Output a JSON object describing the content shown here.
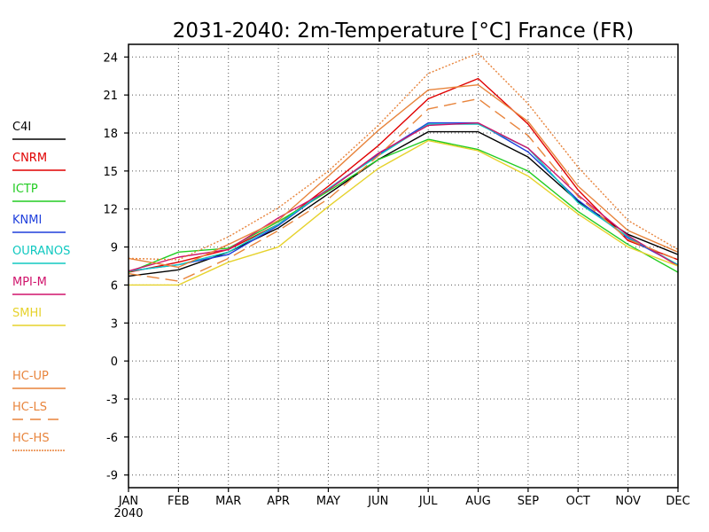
{
  "chart_data": {
    "type": "line",
    "title": "2031-2040: 2m-Temperature [°C] France (FR)",
    "xlabel": "",
    "ylabel": "",
    "categories": [
      "JAN",
      "FEB",
      "MAR",
      "APR",
      "MAY",
      "JUN",
      "JUL",
      "AUG",
      "SEP",
      "OCT",
      "NOV",
      "DEC"
    ],
    "x_sublabel": "2040",
    "ylim": [
      -10,
      25
    ],
    "yticks": [
      -9,
      -6,
      -3,
      0,
      3,
      6,
      9,
      12,
      15,
      18,
      21,
      24
    ],
    "grid": true,
    "legend_position": "left",
    "series": [
      {
        "name": "C4I",
        "color": "#000000",
        "dash": "solid",
        "values": [
          6.7,
          7.2,
          8.6,
          10.5,
          13.2,
          15.9,
          18.1,
          18.1,
          16.1,
          12.6,
          10.0,
          8.4
        ]
      },
      {
        "name": "CNRM",
        "color": "#e00000",
        "dash": "solid",
        "values": [
          7.0,
          7.8,
          8.8,
          10.8,
          13.8,
          17.0,
          20.7,
          22.3,
          18.7,
          13.5,
          9.5,
          8.0
        ]
      },
      {
        "name": "ICTP",
        "color": "#22cc22",
        "dash": "solid",
        "values": [
          7.0,
          8.6,
          8.9,
          11.0,
          13.4,
          15.9,
          17.5,
          16.7,
          15.0,
          11.8,
          9.2,
          7.0
        ]
      },
      {
        "name": "KNMI",
        "color": "#1f3fdc",
        "dash": "solid",
        "values": [
          7.1,
          7.6,
          8.4,
          10.7,
          13.6,
          16.3,
          18.8,
          18.8,
          16.5,
          12.7,
          9.7,
          7.6
        ]
      },
      {
        "name": "OURANOS",
        "color": "#10c8c0",
        "dash": "solid",
        "values": [
          7.1,
          7.6,
          8.6,
          10.8,
          13.6,
          16.2,
          18.7,
          18.7,
          16.8,
          12.5,
          9.8,
          7.6
        ]
      },
      {
        "name": "MPI-M",
        "color": "#d0146c",
        "dash": "solid",
        "values": [
          7.1,
          8.2,
          8.8,
          11.3,
          13.5,
          16.4,
          18.6,
          18.8,
          16.8,
          13.1,
          9.9,
          7.5
        ]
      },
      {
        "name": "SMHI",
        "color": "#e6d22c",
        "dash": "solid",
        "values": [
          6.0,
          6.0,
          7.8,
          9.0,
          12.2,
          15.2,
          17.4,
          16.6,
          14.6,
          11.6,
          9.0,
          7.5
        ]
      },
      {
        "name": "HC-UP",
        "color": "#e8843c",
        "dash": "solid",
        "values": [
          8.1,
          7.4,
          9.2,
          11.1,
          14.6,
          18.2,
          21.4,
          21.8,
          18.9,
          13.8,
          10.3,
          8.6
        ]
      },
      {
        "name": "HC-LS",
        "color": "#e8843c",
        "dash": "longdash",
        "values": [
          6.9,
          6.3,
          8.1,
          10.3,
          12.8,
          16.2,
          19.9,
          20.7,
          17.8,
          13.0,
          9.6,
          8.0
        ]
      },
      {
        "name": "HC-HS",
        "color": "#e8843c",
        "dash": "dotted",
        "values": [
          8.1,
          8.0,
          9.8,
          12.1,
          15.0,
          18.6,
          22.7,
          24.3,
          20.3,
          15.3,
          11.1,
          8.8
        ]
      }
    ]
  }
}
